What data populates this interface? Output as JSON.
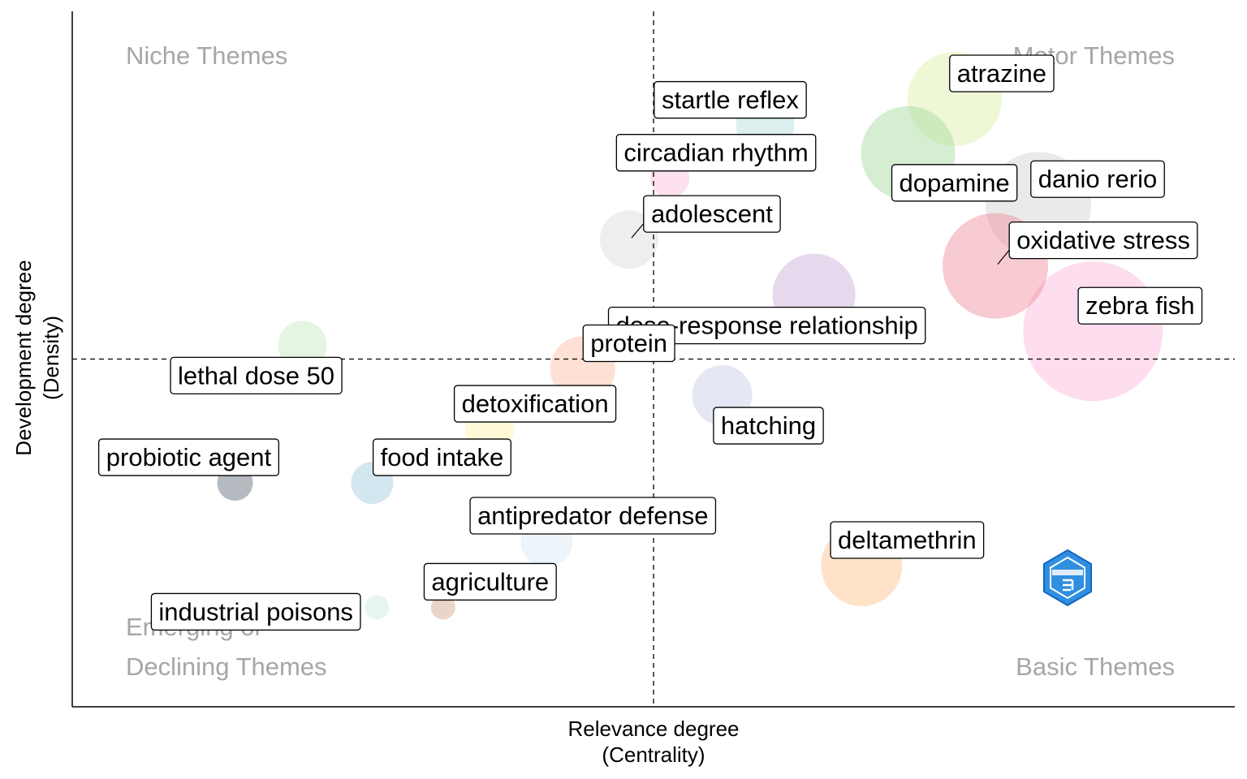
{
  "chart_data": {
    "type": "scatter",
    "title": "",
    "xlabel": "Relevance degree\n(Centrality)",
    "ylabel": "Development degree\n(Density)",
    "xlim": [
      0,
      100
    ],
    "ylim": [
      0,
      100
    ],
    "x_median": 50,
    "y_median": 50,
    "quadrant_labels": {
      "top_left": "Niche Themes",
      "top_right": "Motor Themes",
      "bottom_left": [
        "Emerging or",
        "Declining Themes"
      ],
      "bottom_right": "Basic Themes"
    },
    "bubbles": [
      {
        "label": "atrazine",
        "x": 75.9,
        "y": 87.4,
        "size": 58,
        "color": "#d9f0a3"
      },
      {
        "label": "startle reflex",
        "x": 59.6,
        "y": 83.6,
        "size": 36,
        "color": "#b2dfdb"
      },
      {
        "label": "dopamine",
        "x": 71.9,
        "y": 79.6,
        "size": 58,
        "color": "#a1d99b"
      },
      {
        "label": "circadian rhythm",
        "x": 51.4,
        "y": 76.0,
        "size": 24,
        "color": "#f8bbd9"
      },
      {
        "label": "danio rerio",
        "x": 83.1,
        "y": 72.2,
        "size": 65,
        "color": "#d0d0d0"
      },
      {
        "label": "adolescent",
        "x": 47.9,
        "y": 67.2,
        "size": 36,
        "color": "#d9d9d9"
      },
      {
        "label": "oxidative stress",
        "x": 79.4,
        "y": 63.4,
        "size": 65,
        "color": "#ef8a9a"
      },
      {
        "label": "zebra fish",
        "x": 87.8,
        "y": 54.0,
        "size": 86,
        "color": "#fcb3d9"
      },
      {
        "label": "dose-response relationship",
        "x": 63.8,
        "y": 59.2,
        "size": 51,
        "color": "#c7a9d6"
      },
      {
        "label": "lethal dose 50",
        "x": 19.8,
        "y": 52.0,
        "size": 30,
        "color": "#c7e9c0"
      },
      {
        "label": "protein",
        "x": 43.9,
        "y": 48.6,
        "size": 40,
        "color": "#fcbba1"
      },
      {
        "label": "hatching",
        "x": 55.9,
        "y": 44.8,
        "size": 37,
        "color": "#c6cde6"
      },
      {
        "label": "detoxification",
        "x": 35.9,
        "y": 39.9,
        "size": 30,
        "color": "#fff2a8"
      },
      {
        "label": "probiotic agent",
        "x": 14.0,
        "y": 32.2,
        "size": 22,
        "color": "#5a6774"
      },
      {
        "label": "food intake",
        "x": 25.8,
        "y": 32.2,
        "size": 26,
        "color": "#9ecae1"
      },
      {
        "label": "antipredator defense",
        "x": 40.8,
        "y": 23.8,
        "size": 32,
        "color": "#d6e6f4"
      },
      {
        "label": "deltamethrin",
        "x": 67.9,
        "y": 20.3,
        "size": 50,
        "color": "#fdc086"
      },
      {
        "label": "agriculture",
        "x": 31.9,
        "y": 14.3,
        "size": 15,
        "color": "#d2a286"
      },
      {
        "label": "industrial poisons",
        "x": 26.2,
        "y": 14.3,
        "size": 15,
        "color": "#c7e9e0"
      }
    ]
  }
}
